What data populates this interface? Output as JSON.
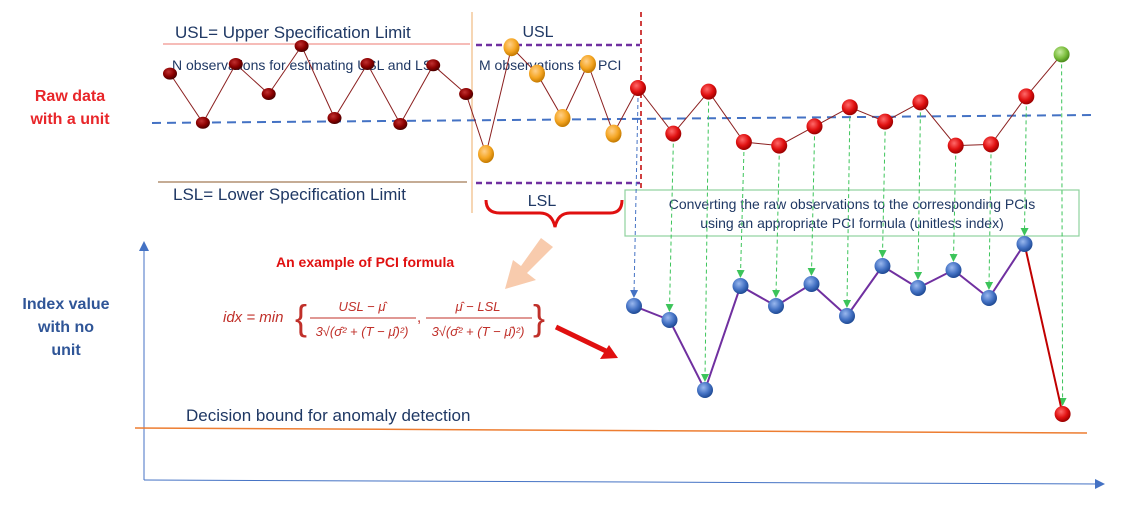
{
  "labels": {
    "raw_line1": "Raw data",
    "raw_line2": "with a unit",
    "index_line1": "Index value",
    "index_line2": "with no",
    "index_line3": "unit",
    "usl_def": "USL= Upper Specification Limit",
    "lsl_def": "LSL= Lower Specification Limit",
    "n_obs": "N observations for estimating USL and LSL",
    "m_obs": "M observations for PCI",
    "usl": "USL",
    "lsl": "LSL",
    "pci_example": "An example of PCI formula",
    "convert_line1": "Converting the raw observations to the corresponding PCIs",
    "convert_line2": "using an appropriate PCI formula (unitless index)",
    "decision_bound": "Decision bound for anomaly detection"
  },
  "formula": {
    "lhs": "idx = min",
    "num1": "USL − μ̂",
    "den1": "3√(σ̂² + (T − μ̂)²)",
    "num2": "μ̂ − LSL",
    "den2": "3√(σ̂² + (T − μ̂)²)"
  },
  "colors": {
    "red_label": "#e8262a",
    "blue_label": "#2f5597",
    "dark_red": "#8b0000",
    "red": "#e01010",
    "orange": "#f5a623",
    "green": "#7dbf3f",
    "blue": "#4472c4",
    "purple": "#7030a0",
    "decision": "#ed7d31",
    "dashed_green": "#3cc45a",
    "box_border": "#8fd19e"
  },
  "chart_data": {
    "type": "line",
    "raw_n_observations": [
      0.72,
      0.31,
      0.8,
      0.55,
      0.95,
      0.35,
      0.8,
      0.3,
      0.79,
      0.55
    ],
    "raw_m_observations": [
      0.05,
      0.94,
      0.72,
      0.35,
      0.8,
      0.22
    ],
    "raw_pci_observations": [
      0.6,
      0.22,
      0.57,
      0.15,
      0.12,
      0.28,
      0.44,
      0.32,
      0.48,
      0.12,
      0.13,
      0.53,
      0.88
    ],
    "pci_index_values": [
      0.62,
      0.55,
      0.2,
      0.72,
      0.62,
      0.73,
      0.57,
      0.82,
      0.71,
      0.8,
      0.66,
      0.93,
      0.08
    ],
    "decision_bound": 0.15,
    "anomaly_index": 12
  }
}
